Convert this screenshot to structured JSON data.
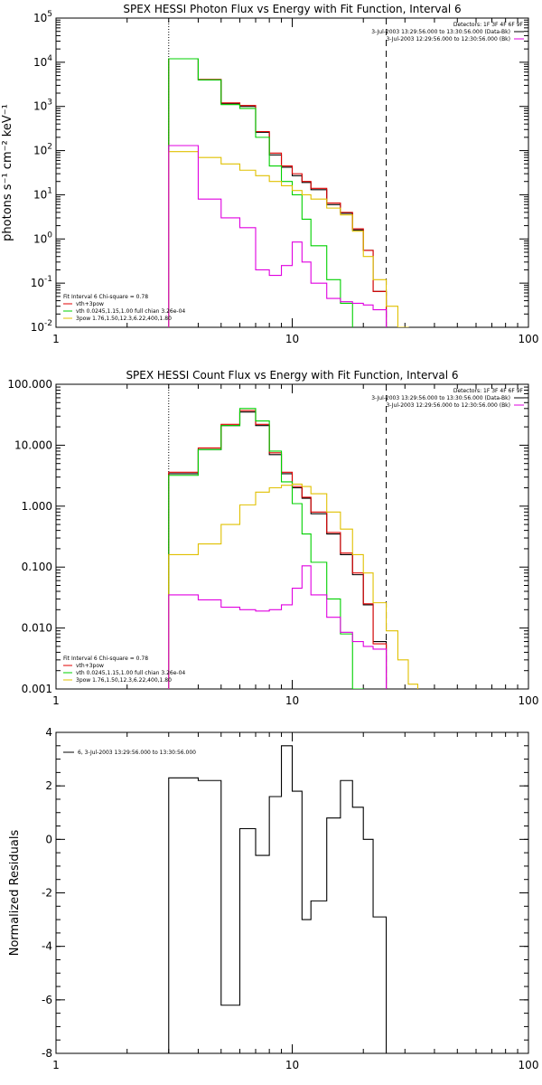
{
  "chart_data": [
    {
      "type": "line",
      "title": "SPEX HESSI Photon Flux vs Energy with Fit Function, Interval 6",
      "ylabel": "photons s⁻¹ cm⁻² keV⁻¹",
      "xscale": "log",
      "yscale": "log",
      "xlim": [
        1,
        100
      ],
      "ylim": [
        0.01,
        100000
      ],
      "x_ticks": [
        {
          "v": 1,
          "label": "1"
        },
        {
          "v": 10,
          "label": "10"
        },
        {
          "v": 100,
          "label": "100"
        }
      ],
      "y_ticks": [
        {
          "v": 0.01,
          "base": "10",
          "exp": "-2"
        },
        {
          "v": 0.1,
          "base": "10",
          "exp": "-1"
        },
        {
          "v": 1,
          "base": "10",
          "exp": "0"
        },
        {
          "v": 10,
          "base": "10",
          "exp": "1"
        },
        {
          "v": 100,
          "base": "10",
          "exp": "2"
        },
        {
          "v": 1000,
          "base": "10",
          "exp": "3"
        },
        {
          "v": 10000,
          "base": "10",
          "exp": "4"
        },
        {
          "v": 100000,
          "base": "10",
          "exp": "5"
        }
      ],
      "vlines": [
        {
          "x": 3,
          "style": "dotted"
        },
        {
          "x": 25,
          "style": "dashed"
        }
      ],
      "legend_right": [
        {
          "text": "Detectors: 1F 3F 4F 6F 9F",
          "color": ""
        },
        {
          "text": "3-Jul-2003 13:29:56.000 to 13:30:56.000 (Data-Bk)",
          "color": "#000000"
        },
        {
          "text": "3-Jul-2003 12:29:56.000 to 12:30:56.000 (Bk)",
          "color": "#e000e0"
        }
      ],
      "legend_left": [
        {
          "text": "Fit Interval 6   Chi-square = 0.78",
          "color": ""
        },
        {
          "text": "vth+3pow",
          "color": "#e00000"
        },
        {
          "text": "vth 0.0245,1.15,1.00  full chian 3.26e-04",
          "color": "#00d000"
        },
        {
          "text": "3pow 1.76,1.50,12.3,6.22,400,1.80",
          "color": "#e0c000"
        }
      ],
      "series": [
        {
          "color": "#000000",
          "edges": [
            3,
            4,
            5,
            6,
            7,
            8,
            9,
            10,
            11,
            12,
            14,
            16,
            18,
            20,
            22,
            25
          ],
          "values": [
            12000,
            4000,
            1150,
            1000,
            260,
            80,
            42,
            27,
            19,
            13,
            6,
            3.8,
            1.6,
            0.55,
            0.065
          ]
        },
        {
          "color": "#e00000",
          "edges": [
            3,
            4,
            5,
            6,
            7,
            8,
            9,
            10,
            11,
            12,
            14,
            16,
            18,
            20,
            22,
            25
          ],
          "values": [
            12000,
            4100,
            1200,
            1050,
            270,
            88,
            45,
            30,
            20,
            14,
            6.5,
            4.0,
            1.7,
            0.55,
            0.065
          ]
        },
        {
          "color": "#00d000",
          "edges": [
            3,
            4,
            5,
            6,
            7,
            8,
            9,
            10,
            11,
            12,
            14,
            16,
            18
          ],
          "values": [
            12000,
            4000,
            1100,
            900,
            200,
            45,
            20,
            10,
            2.8,
            0.7,
            0.12,
            0.035
          ]
        },
        {
          "color": "#e0c000",
          "edges": [
            3,
            4,
            5,
            6,
            7,
            8,
            9,
            10,
            11,
            12,
            14,
            16,
            18,
            20,
            22,
            25,
            28,
            31
          ],
          "values": [
            95,
            70,
            50,
            36,
            27,
            20,
            16,
            12.5,
            10,
            8,
            5,
            3.5,
            1.5,
            0.4,
            0.12,
            0.03,
            0.01
          ]
        },
        {
          "color": "#e000e0",
          "edges": [
            3,
            4,
            5,
            6,
            7,
            8,
            9,
            10,
            11,
            12,
            14,
            16,
            18,
            20,
            22,
            25
          ],
          "values": [
            130,
            8,
            3,
            1.8,
            0.2,
            0.15,
            0.25,
            0.85,
            0.3,
            0.1,
            0.045,
            0.038,
            0.035,
            0.032,
            0.025
          ]
        }
      ]
    },
    {
      "type": "line",
      "title": "SPEX HESSI Count Flux vs Energy with Fit Function, Interval 6",
      "ylabel": "",
      "xscale": "log",
      "yscale": "log",
      "xlim": [
        1,
        100
      ],
      "ylim": [
        0.001,
        100
      ],
      "x_ticks": [
        {
          "v": 1,
          "label": "1"
        },
        {
          "v": 10,
          "label": "10"
        },
        {
          "v": 100,
          "label": "100"
        }
      ],
      "y_ticks": [
        {
          "v": 0.001,
          "label": "0.001"
        },
        {
          "v": 0.01,
          "label": "0.010"
        },
        {
          "v": 0.1,
          "label": "0.100"
        },
        {
          "v": 1,
          "label": "1.000"
        },
        {
          "v": 10,
          "label": "10.000"
        },
        {
          "v": 100,
          "label": "100.000"
        }
      ],
      "vlines": [
        {
          "x": 3,
          "style": "dotted"
        },
        {
          "x": 25,
          "style": "dashed"
        }
      ],
      "legend_right": [
        {
          "text": "Detectors: 1F 3F 4F 6F 9F",
          "color": ""
        },
        {
          "text": "3-Jul-2003 13:29:56.000 to 13:30:56.000 (Data-Bk)",
          "color": "#000000"
        },
        {
          "text": "3-Jul-2003 12:29:56.000 to 12:30:56.000 (Bk)",
          "color": "#e000e0"
        }
      ],
      "legend_left": [
        {
          "text": "Fit Interval 6   Chi-square = 0.78",
          "color": ""
        },
        {
          "text": "vth+3pow",
          "color": "#e00000"
        },
        {
          "text": "vth 0.0245,1.15,1.00  full chian 3.26e-04",
          "color": "#00d000"
        },
        {
          "text": "3pow 1.76,1.50,12.3,6.22,400,1.80",
          "color": "#e0c000"
        }
      ],
      "series": [
        {
          "color": "#000000",
          "edges": [
            3,
            4,
            5,
            6,
            7,
            8,
            9,
            10,
            11,
            12,
            14,
            16,
            18,
            20,
            22,
            25
          ],
          "values": [
            3.4,
            8.5,
            21,
            35,
            21,
            7,
            3.4,
            2.0,
            1.35,
            0.75,
            0.35,
            0.16,
            0.075,
            0.024,
            0.006
          ]
        },
        {
          "color": "#e00000",
          "edges": [
            3,
            4,
            5,
            6,
            7,
            8,
            9,
            10,
            11,
            12,
            14,
            16,
            18,
            20,
            22,
            25
          ],
          "values": [
            3.6,
            9,
            22,
            37,
            22,
            7.5,
            3.6,
            2.1,
            1.4,
            0.8,
            0.37,
            0.17,
            0.08,
            0.025,
            0.0055
          ]
        },
        {
          "color": "#00d000",
          "edges": [
            3,
            4,
            5,
            6,
            7,
            8,
            9,
            10,
            11,
            12,
            14,
            16,
            18,
            20
          ],
          "values": [
            3.2,
            8.5,
            21,
            40,
            25,
            8,
            2.5,
            1.1,
            0.35,
            0.12,
            0.03,
            0.008,
            0.001
          ]
        },
        {
          "color": "#e0c000",
          "edges": [
            3,
            4,
            5,
            6,
            7,
            8,
            9,
            10,
            11,
            12,
            14,
            16,
            18,
            20,
            22,
            25,
            28,
            31,
            34
          ],
          "values": [
            0.16,
            0.24,
            0.5,
            1.05,
            1.7,
            2.0,
            2.2,
            2.3,
            2.1,
            1.6,
            0.8,
            0.42,
            0.16,
            0.08,
            0.026,
            0.009,
            0.003,
            0.0012
          ]
        },
        {
          "color": "#e000e0",
          "edges": [
            3,
            4,
            5,
            6,
            7,
            8,
            9,
            10,
            11,
            12,
            14,
            16,
            18,
            20,
            22,
            25
          ],
          "values": [
            0.035,
            0.029,
            0.022,
            0.02,
            0.019,
            0.02,
            0.024,
            0.045,
            0.105,
            0.035,
            0.015,
            0.0085,
            0.006,
            0.005,
            0.0045
          ]
        }
      ]
    },
    {
      "type": "line",
      "title": "",
      "ylabel": "Normalized Residuals",
      "xscale": "log",
      "yscale": "linear",
      "xlim": [
        1,
        100
      ],
      "ylim": [
        -8,
        4
      ],
      "x_ticks": [
        {
          "v": 1,
          "label": "1"
        },
        {
          "v": 10,
          "label": "10"
        },
        {
          "v": 100,
          "label": "100"
        }
      ],
      "y_ticks": [
        {
          "v": -8,
          "label": "-8"
        },
        {
          "v": -6,
          "label": "-6"
        },
        {
          "v": -4,
          "label": "-4"
        },
        {
          "v": -2,
          "label": "-2"
        },
        {
          "v": 0,
          "label": "0"
        },
        {
          "v": 2,
          "label": "2"
        },
        {
          "v": 4,
          "label": "4"
        }
      ],
      "vlines": [],
      "legend_right": [],
      "legend_left": [
        {
          "text": "6,  3-Jul-2003 13:29:56.000 to 13:30:56.000",
          "color": "#000000"
        }
      ],
      "series": [
        {
          "color": "#000000",
          "edges": [
            3,
            4,
            5,
            6,
            7,
            8,
            9,
            10,
            11,
            12,
            14,
            16,
            18,
            20,
            22,
            25
          ],
          "values": [
            2.3,
            2.2,
            -6.2,
            0.4,
            -0.6,
            1.6,
            3.5,
            1.8,
            -3.0,
            -2.3,
            0.8,
            2.2,
            1.2,
            0.0,
            -2.9
          ]
        }
      ]
    }
  ]
}
